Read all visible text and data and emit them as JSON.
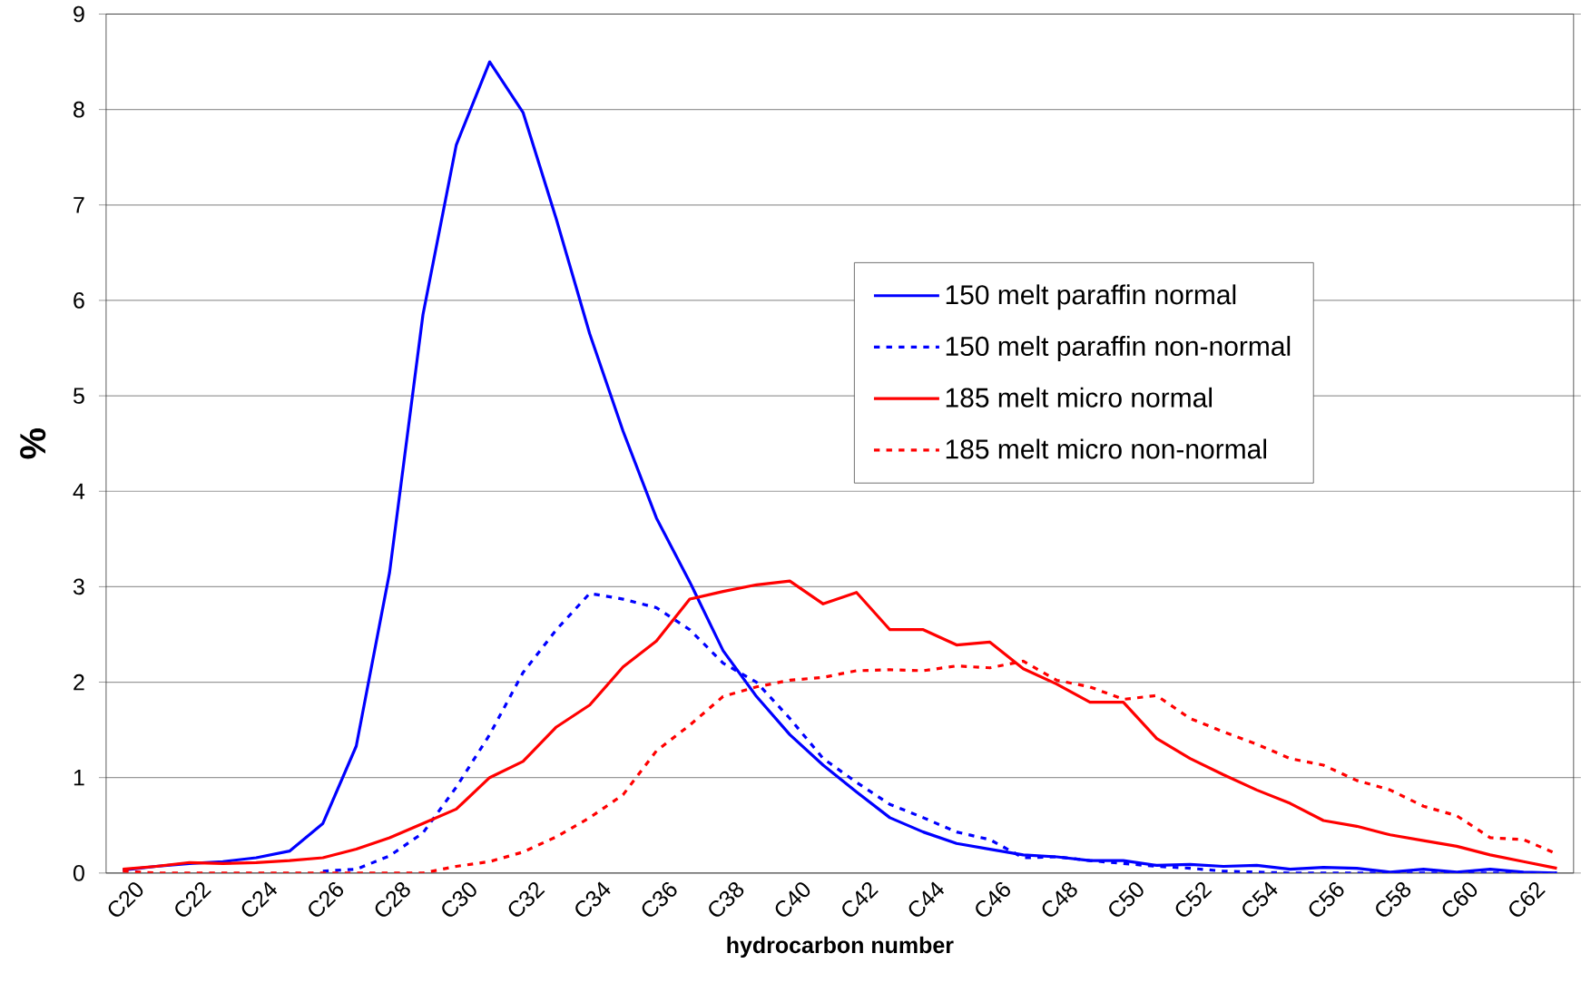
{
  "chart_data": {
    "type": "line",
    "xlabel": "hydrocarbon number",
    "ylabel": "%",
    "categories": [
      "C20",
      null,
      "C22",
      null,
      "C24",
      null,
      "C26",
      null,
      "C28",
      null,
      "C30",
      null,
      "C32",
      null,
      "C34",
      null,
      "C36",
      null,
      "C38",
      null,
      "C40",
      null,
      "C42",
      null,
      "C44",
      null,
      "C46",
      null,
      "C48",
      null,
      "C50",
      null,
      "C52",
      null,
      "C54",
      null,
      "C56",
      null,
      "C58",
      null,
      "C60",
      null,
      "C62",
      null
    ],
    "ylim": [
      0,
      9
    ],
    "yticks": [
      0,
      1,
      2,
      3,
      4,
      5,
      6,
      7,
      8,
      9
    ],
    "grid": "y",
    "legend": "right",
    "series": [
      {
        "name": "150 melt paraffin normal",
        "color": "#0000ff",
        "line_style": "solid",
        "values": [
          0.03,
          0.07,
          0.1,
          0.12,
          0.16,
          0.23,
          0.52,
          1.33,
          3.15,
          5.85,
          7.63,
          8.5,
          7.97,
          6.85,
          5.65,
          4.63,
          3.72,
          3.05,
          2.33,
          1.85,
          1.45,
          1.13,
          0.85,
          0.58,
          0.43,
          0.31,
          0.25,
          0.19,
          0.17,
          0.13,
          0.13,
          0.08,
          0.09,
          0.07,
          0.08,
          0.04,
          0.06,
          0.05,
          0.01,
          0.04,
          0.01,
          0.04,
          0.01,
          0.0
        ]
      },
      {
        "name": "150 melt paraffin non-normal",
        "color": "#0000ff",
        "line_style": "dotted",
        "values": [
          null,
          null,
          null,
          null,
          null,
          null,
          0.02,
          0.04,
          0.18,
          0.42,
          0.9,
          1.45,
          2.1,
          2.55,
          2.93,
          2.87,
          2.78,
          2.55,
          2.2,
          2.0,
          1.62,
          1.2,
          0.95,
          0.72,
          0.58,
          0.43,
          0.35,
          0.16,
          0.17,
          0.13,
          0.1,
          0.07,
          0.05,
          0.02,
          0.01,
          0.0,
          0.0,
          0.0,
          0.0,
          0.0,
          0.0,
          0.0,
          0.0,
          0.0
        ]
      },
      {
        "name": "185 melt micro normal",
        "color": "#ff0000",
        "line_style": "solid",
        "values": [
          0.04,
          0.07,
          0.11,
          0.1,
          0.11,
          0.13,
          0.16,
          0.25,
          0.37,
          0.52,
          0.67,
          1.0,
          1.17,
          1.53,
          1.76,
          2.16,
          2.43,
          2.87,
          2.95,
          3.02,
          3.06,
          2.82,
          2.94,
          2.55,
          2.55,
          2.39,
          2.42,
          2.14,
          1.98,
          1.79,
          1.79,
          1.41,
          1.2,
          1.03,
          0.87,
          0.73,
          0.55,
          0.49,
          0.4,
          0.34,
          0.28,
          0.19,
          0.12,
          0.05
        ]
      },
      {
        "name": "185 melt micro non-normal",
        "color": "#ff0000",
        "line_style": "dotted",
        "values": [
          0.02,
          0.0,
          0.0,
          0.0,
          0.0,
          0.0,
          0.0,
          0.0,
          0.0,
          0.0,
          0.07,
          0.12,
          0.22,
          0.38,
          0.58,
          0.82,
          1.28,
          1.55,
          1.85,
          1.95,
          2.02,
          2.05,
          2.12,
          2.13,
          2.12,
          2.17,
          2.15,
          2.22,
          2.02,
          1.95,
          1.82,
          1.86,
          1.62,
          1.48,
          1.35,
          1.2,
          1.13,
          0.97,
          0.87,
          0.7,
          0.6,
          0.37,
          0.35,
          0.2
        ]
      }
    ]
  }
}
